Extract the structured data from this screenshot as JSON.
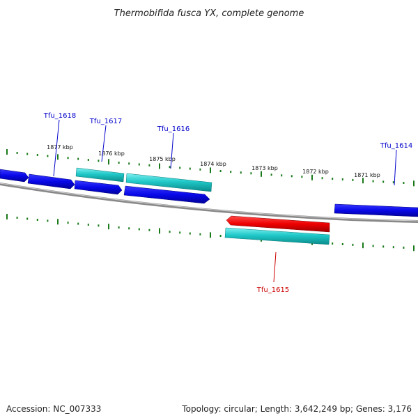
{
  "title": "Thermobifida fusca YX, complete genome",
  "footer": {
    "accession_label": "Accession: NC_007333",
    "topology_label": "Topology: circular; Length: 3,642,249 bp; Genes: 3,176"
  },
  "scale_labels": [
    "1877 kbp",
    "1876 kbp",
    "1875 kbp",
    "1874 kbp",
    "1873 kbp",
    "1872 kbp",
    "1871 kbp"
  ],
  "genes": [
    {
      "name": "Tfu_1618",
      "strand": "+",
      "color": "#0000cc"
    },
    {
      "name": "Tfu_1617",
      "strand": "+",
      "color": "#0000cc"
    },
    {
      "name": "Tfu_1616",
      "strand": "+",
      "color": "#0000cc"
    },
    {
      "name": "Tfu_1614",
      "strand": "+",
      "color": "#0000cc"
    },
    {
      "name": "Tfu_1615",
      "strand": "-",
      "color": "#cc0000"
    }
  ],
  "colors": {
    "cds_forward": "#0a0ae0",
    "cds_reverse": "#ee0000",
    "rna_feature": "#22cccc",
    "backbone": "#888888",
    "tick": "#1a7a1a",
    "label_forward": "#0000cc",
    "label_reverse": "#cc0000"
  }
}
